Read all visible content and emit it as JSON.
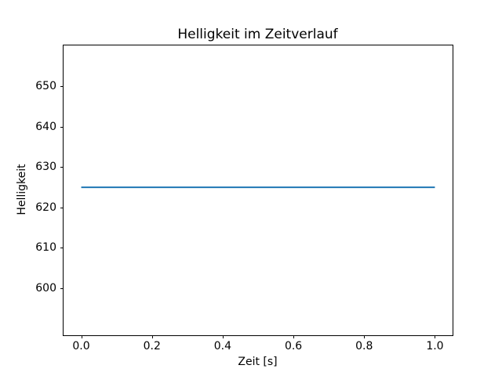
{
  "figure": {
    "background_color": "#ffffff",
    "text_color": "#000000",
    "spine_color": "#000000"
  },
  "chart_data": {
    "type": "line",
    "title": "Helligkeit im Zeitverlauf",
    "xlabel": "Zeit [s]",
    "ylabel": "Helligkeit",
    "xlim": [
      -0.05,
      1.05
    ],
    "ylim": [
      588.3,
      660.2
    ],
    "xticks": [
      0.0,
      0.2,
      0.4,
      0.6,
      0.8,
      1.0
    ],
    "xtick_labels": [
      "0.0",
      "0.2",
      "0.4",
      "0.6",
      "0.8",
      "1.0"
    ],
    "yticks": [
      600,
      610,
      620,
      630,
      640,
      650
    ],
    "ytick_labels": [
      "600",
      "610",
      "620",
      "630",
      "640",
      "650"
    ],
    "grid": false,
    "legend": null,
    "series": [
      {
        "name": "Helligkeit",
        "color": "#1f77b4",
        "x": [
          0.0,
          1.0
        ],
        "y": [
          625.0,
          625.0
        ]
      }
    ]
  }
}
